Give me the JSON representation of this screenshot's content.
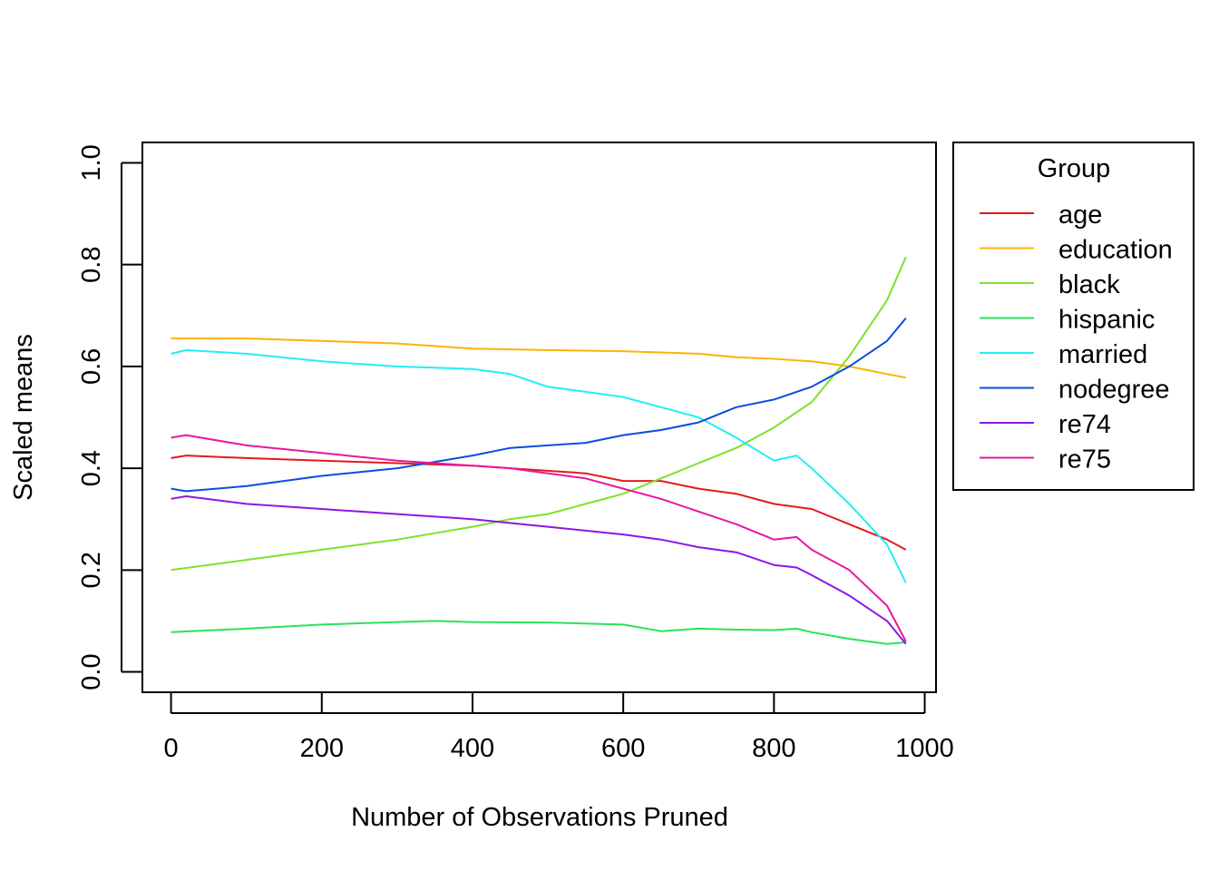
{
  "chart_data": {
    "type": "line",
    "title": "",
    "xlabel": "Number of Observations Pruned",
    "ylabel": "Scaled means",
    "xlim": [
      -38,
      1015
    ],
    "ylim": [
      -0.04,
      1.04
    ],
    "xticks": [
      0,
      200,
      400,
      600,
      800,
      1000
    ],
    "yticks": [
      0.0,
      0.2,
      0.4,
      0.6,
      0.8,
      1.0
    ],
    "xtick_labels": [
      "0",
      "200",
      "400",
      "600",
      "800",
      "1000"
    ],
    "ytick_labels": [
      "0.0",
      "0.2",
      "0.4",
      "0.6",
      "0.8",
      "1.0"
    ],
    "grid": false,
    "legend": {
      "title": "Group",
      "position": "right-outside"
    },
    "series": [
      {
        "name": "age",
        "color": "#E31A1C",
        "x": [
          0,
          20,
          100,
          200,
          300,
          400,
          450,
          500,
          550,
          600,
          650,
          700,
          750,
          800,
          850,
          900,
          950,
          975
        ],
        "y": [
          0.42,
          0.425,
          0.42,
          0.415,
          0.41,
          0.405,
          0.4,
          0.395,
          0.39,
          0.375,
          0.375,
          0.36,
          0.35,
          0.33,
          0.32,
          0.29,
          0.26,
          0.24
        ]
      },
      {
        "name": "education",
        "color": "#FFB300",
        "x": [
          0,
          100,
          200,
          300,
          400,
          500,
          600,
          700,
          750,
          800,
          850,
          900,
          950,
          975
        ],
        "y": [
          0.655,
          0.655,
          0.65,
          0.645,
          0.635,
          0.632,
          0.63,
          0.625,
          0.618,
          0.615,
          0.61,
          0.6,
          0.585,
          0.578
        ]
      },
      {
        "name": "black",
        "color": "#7FE02A",
        "x": [
          0,
          100,
          200,
          300,
          400,
          450,
          500,
          550,
          600,
          650,
          700,
          750,
          800,
          850,
          900,
          950,
          975
        ],
        "y": [
          0.2,
          0.22,
          0.24,
          0.26,
          0.285,
          0.3,
          0.31,
          0.33,
          0.35,
          0.38,
          0.41,
          0.44,
          0.48,
          0.53,
          0.62,
          0.73,
          0.815
        ]
      },
      {
        "name": "hispanic",
        "color": "#2AE25A",
        "x": [
          0,
          100,
          200,
          300,
          350,
          400,
          500,
          600,
          650,
          700,
          750,
          800,
          830,
          850,
          900,
          950,
          975
        ],
        "y": [
          0.078,
          0.085,
          0.093,
          0.098,
          0.1,
          0.098,
          0.097,
          0.093,
          0.08,
          0.085,
          0.083,
          0.082,
          0.085,
          0.078,
          0.065,
          0.055,
          0.058
        ]
      },
      {
        "name": "married",
        "color": "#22EEF4",
        "x": [
          0,
          20,
          100,
          200,
          300,
          400,
          450,
          500,
          550,
          600,
          650,
          700,
          750,
          800,
          830,
          850,
          900,
          950,
          975
        ],
        "y": [
          0.625,
          0.632,
          0.625,
          0.61,
          0.6,
          0.595,
          0.585,
          0.56,
          0.55,
          0.54,
          0.52,
          0.5,
          0.46,
          0.415,
          0.425,
          0.4,
          0.33,
          0.25,
          0.175
        ]
      },
      {
        "name": "nodegree",
        "color": "#0A4DDE",
        "x": [
          0,
          20,
          100,
          200,
          300,
          400,
          450,
          500,
          550,
          600,
          650,
          700,
          750,
          800,
          850,
          900,
          950,
          975
        ],
        "y": [
          0.36,
          0.355,
          0.365,
          0.385,
          0.4,
          0.425,
          0.44,
          0.445,
          0.45,
          0.465,
          0.475,
          0.49,
          0.52,
          0.535,
          0.56,
          0.6,
          0.65,
          0.695
        ]
      },
      {
        "name": "re74",
        "color": "#8A18E6",
        "x": [
          0,
          20,
          100,
          200,
          300,
          400,
          500,
          600,
          650,
          700,
          750,
          800,
          830,
          850,
          900,
          950,
          975
        ],
        "y": [
          0.34,
          0.345,
          0.33,
          0.32,
          0.31,
          0.3,
          0.285,
          0.27,
          0.26,
          0.245,
          0.235,
          0.21,
          0.205,
          0.19,
          0.15,
          0.1,
          0.055
        ]
      },
      {
        "name": "re75",
        "color": "#E8189E",
        "x": [
          0,
          20,
          100,
          200,
          300,
          400,
          450,
          500,
          550,
          600,
          650,
          700,
          750,
          800,
          830,
          850,
          900,
          950,
          975
        ],
        "y": [
          0.46,
          0.465,
          0.445,
          0.43,
          0.415,
          0.405,
          0.4,
          0.39,
          0.38,
          0.36,
          0.34,
          0.315,
          0.29,
          0.26,
          0.265,
          0.24,
          0.2,
          0.13,
          0.06
        ]
      }
    ]
  }
}
